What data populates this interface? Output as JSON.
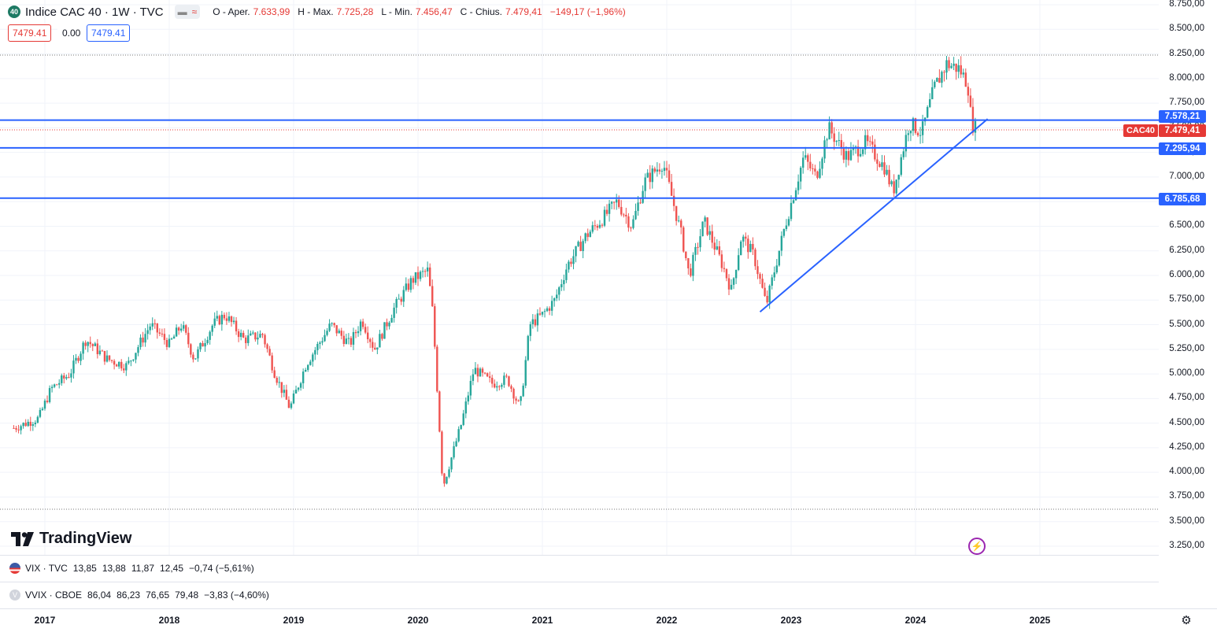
{
  "legend": {
    "badge": "40",
    "symbol": "Indice CAC 40 · 1W · TVC",
    "vis_a": "▬",
    "vis_b": "≈",
    "o_label": "O - Aper.",
    "o_value": "7.633,99",
    "h_label": "H - Max.",
    "h_value": "7.725,28",
    "l_label": "L - Min.",
    "l_value": "7.456,47",
    "c_label": "C - Chius.",
    "c_value": "7.479,41",
    "change": "−149,17 (−1,96%)"
  },
  "order_boxes": {
    "sell": "7479.41",
    "spread": "0.00",
    "buy": "7479.41"
  },
  "colors": {
    "up": "#26a69a",
    "down": "#ef5350",
    "lines": "#2962ff",
    "axis_tag": "#2962ff",
    "last_tag": "#e53935"
  },
  "price_axis": {
    "ticks": [
      "8.750,00",
      "8.500,00",
      "8.250,00",
      "8.000,00",
      "7.750,00",
      "7.500,00",
      "7.250,00",
      "7.000,00",
      "6.750,00",
      "6.500,00",
      "6.250,00",
      "6.000,00",
      "5.750,00",
      "5.500,00",
      "5.250,00",
      "5.000,00",
      "4.750,00",
      "4.500,00",
      "4.250,00",
      "4.000,00",
      "3.750,00",
      "3.500,00",
      "3.250,00"
    ],
    "line_tags": [
      "7.578,21",
      "7.295,94",
      "6.785,68"
    ],
    "last_price": "7.479,41",
    "symbol_tag": "CAC40"
  },
  "panes": [
    {
      "symbol": "VIX · TVC",
      "o": "13,85",
      "h": "13,88",
      "l": "11,87",
      "c": "12,45",
      "change": "−0,74 (−5,61%)",
      "icon": "us-flag-icon"
    },
    {
      "symbol": "VVIX · CBOE",
      "o": "86,04",
      "h": "86,23",
      "l": "76,65",
      "c": "79,48",
      "change": "−3,83 (−4,60%)",
      "icon": "v-icon"
    }
  ],
  "time_axis": {
    "years": [
      "2017",
      "2018",
      "2019",
      "2020",
      "2021",
      "2022",
      "2023",
      "2024",
      "2025"
    ]
  },
  "logo": "TradingView",
  "chart_data": {
    "type": "candlestick",
    "title": "Indice CAC 40 · 1W · TVC",
    "interval": "1W",
    "x_range": [
      2016.7,
      2025.95
    ],
    "ylim": [
      3250,
      8750
    ],
    "grid": true,
    "series_price_keypoints": [
      {
        "t": 2016.75,
        "v": 4450
      },
      {
        "t": 2016.95,
        "v": 4550
      },
      {
        "t": 2017.05,
        "v": 4850
      },
      {
        "t": 2017.2,
        "v": 5000
      },
      {
        "t": 2017.33,
        "v": 5350
      },
      {
        "t": 2017.5,
        "v": 5150
      },
      {
        "t": 2017.66,
        "v": 5080
      },
      {
        "t": 2017.85,
        "v": 5500
      },
      {
        "t": 2018.0,
        "v": 5300
      },
      {
        "t": 2018.1,
        "v": 5500
      },
      {
        "t": 2018.2,
        "v": 5150
      },
      {
        "t": 2018.35,
        "v": 5500
      },
      {
        "t": 2018.45,
        "v": 5600
      },
      {
        "t": 2018.6,
        "v": 5350
      },
      {
        "t": 2018.75,
        "v": 5400
      },
      {
        "t": 2018.85,
        "v": 5000
      },
      {
        "t": 2018.97,
        "v": 4650
      },
      {
        "t": 2019.1,
        "v": 5100
      },
      {
        "t": 2019.3,
        "v": 5500
      },
      {
        "t": 2019.45,
        "v": 5300
      },
      {
        "t": 2019.55,
        "v": 5550
      },
      {
        "t": 2019.65,
        "v": 5250
      },
      {
        "t": 2019.8,
        "v": 5650
      },
      {
        "t": 2019.95,
        "v": 5950
      },
      {
        "t": 2020.08,
        "v": 6050
      },
      {
        "t": 2020.12,
        "v": 5600
      },
      {
        "t": 2020.2,
        "v": 3850
      },
      {
        "t": 2020.35,
        "v": 4500
      },
      {
        "t": 2020.45,
        "v": 5050
      },
      {
        "t": 2020.6,
        "v": 4900
      },
      {
        "t": 2020.72,
        "v": 4950
      },
      {
        "t": 2020.82,
        "v": 4650
      },
      {
        "t": 2020.9,
        "v": 5500
      },
      {
        "t": 2021.0,
        "v": 5600
      },
      {
        "t": 2021.1,
        "v": 5750
      },
      {
        "t": 2021.2,
        "v": 6100
      },
      {
        "t": 2021.35,
        "v": 6400
      },
      {
        "t": 2021.5,
        "v": 6600
      },
      {
        "t": 2021.6,
        "v": 6750
      },
      {
        "t": 2021.72,
        "v": 6500
      },
      {
        "t": 2021.82,
        "v": 6950
      },
      {
        "t": 2021.97,
        "v": 7150
      },
      {
        "t": 2022.12,
        "v": 6400
      },
      {
        "t": 2022.18,
        "v": 6000
      },
      {
        "t": 2022.3,
        "v": 6550
      },
      {
        "t": 2022.45,
        "v": 6100
      },
      {
        "t": 2022.52,
        "v": 5850
      },
      {
        "t": 2022.6,
        "v": 6400
      },
      {
        "t": 2022.7,
        "v": 6200
      },
      {
        "t": 2022.8,
        "v": 5700
      },
      {
        "t": 2022.95,
        "v": 6500
      },
      {
        "t": 2023.1,
        "v": 7200
      },
      {
        "t": 2023.2,
        "v": 7000
      },
      {
        "t": 2023.3,
        "v": 7500
      },
      {
        "t": 2023.45,
        "v": 7200
      },
      {
        "t": 2023.6,
        "v": 7350
      },
      {
        "t": 2023.75,
        "v": 7100
      },
      {
        "t": 2023.82,
        "v": 6850
      },
      {
        "t": 2023.95,
        "v": 7550
      },
      {
        "t": 2024.05,
        "v": 7450
      },
      {
        "t": 2024.15,
        "v": 7900
      },
      {
        "t": 2024.25,
        "v": 8150
      },
      {
        "t": 2024.35,
        "v": 8100
      },
      {
        "t": 2024.42,
        "v": 7950
      },
      {
        "t": 2024.45,
        "v": 7550
      },
      {
        "t": 2024.49,
        "v": 7479.41
      }
    ],
    "horizontal_lines": [
      7578.21,
      7295.94,
      6785.68
    ],
    "trendline": {
      "from": {
        "t": 2022.75,
        "v": 5630
      },
      "to": {
        "t": 2024.58,
        "v": 7590
      }
    },
    "last_price": 7479.41
  }
}
